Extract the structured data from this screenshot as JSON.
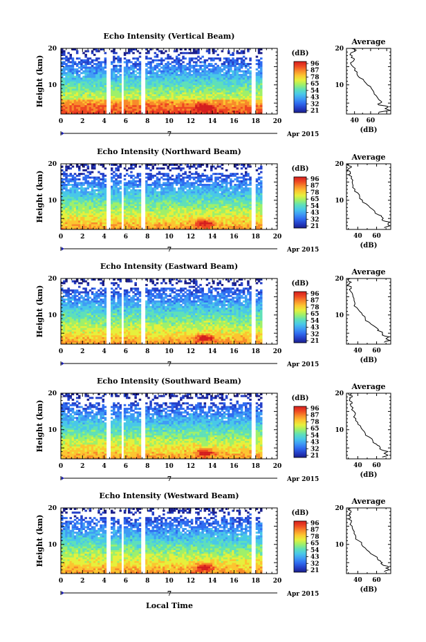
{
  "figure": {
    "xlabel": "Local Time",
    "date_left": "7",
    "date_right": "Apr 2015",
    "colorbar_unit": "(dB)",
    "profile_title": "Average",
    "profile_xlabel": "(dB)"
  },
  "colors": {
    "scale": [
      "#1b1f8c",
      "#2440c8",
      "#2f6cf0",
      "#3f9cf5",
      "#49c8e8",
      "#5fe0b8",
      "#9ef06a",
      "#e6f03c",
      "#fcc530",
      "#f88a2a",
      "#ee4722",
      "#d41e1e"
    ]
  },
  "chart_data": [
    {
      "type": "heatmap",
      "title": "Echo Intensity (Vertical Beam)",
      "ylabel": "Height (km)",
      "xlim": [
        0,
        20
      ],
      "ylim": [
        2,
        20
      ],
      "xticks": [
        0,
        2,
        4,
        6,
        8,
        10,
        12,
        14,
        16,
        18,
        20
      ],
      "yticks": [
        10,
        20
      ],
      "colorbar": {
        "unit": "(dB)",
        "ticks": [
          96,
          87,
          78,
          65,
          54,
          43,
          32,
          21
        ]
      },
      "data_gaps_hours": [
        [
          4.3,
          4.6
        ],
        [
          5.6,
          5.9
        ],
        [
          7.5,
          7.9
        ],
        [
          17.6,
          18.0
        ]
      ],
      "end_hour": 18.4,
      "profile": {
        "title": "Average",
        "xlabel": "(dB)",
        "xlim": [
          30,
          85
        ],
        "xticks": [
          40,
          60
        ],
        "ylim": [
          2,
          20
        ],
        "yticks": [
          10,
          20
        ],
        "heights_km": [
          2.5,
          3.0,
          3.5,
          4.0,
          4.5,
          5.0,
          5.5,
          6.0,
          7.0,
          8.0,
          9.0,
          10.0,
          11.0,
          12.0,
          13.0,
          14.0,
          15.0,
          16.0,
          17.0,
          17.5,
          18.0,
          18.5,
          19.0,
          19.5,
          20.0
        ],
        "values_db": [
          70,
          84,
          78,
          82,
          70,
          72,
          73,
          70,
          67,
          64,
          61,
          56,
          52,
          46,
          43,
          40,
          38,
          35,
          40,
          36,
          37,
          35,
          38,
          42,
          36
        ]
      }
    },
    {
      "type": "heatmap",
      "title": "Echo Intensity (Northward Beam)",
      "ylabel": "Height (km)",
      "xlim": [
        0,
        20
      ],
      "ylim": [
        2,
        20
      ],
      "xticks": [
        0,
        2,
        4,
        6,
        8,
        10,
        12,
        14,
        16,
        18,
        20
      ],
      "yticks": [
        10,
        20
      ],
      "colorbar": {
        "unit": "(dB)",
        "ticks": [
          96,
          87,
          78,
          65,
          54,
          43,
          32,
          21
        ]
      },
      "data_gaps_hours": [
        [
          4.3,
          4.6
        ],
        [
          5.6,
          5.9
        ],
        [
          7.5,
          7.9
        ],
        [
          17.6,
          18.0
        ]
      ],
      "end_hour": 18.4,
      "profile": {
        "title": "Average",
        "xlabel": "(dB)",
        "xlim": [
          28,
          75
        ],
        "xticks": [
          40,
          60
        ],
        "ylim": [
          2,
          20
        ],
        "yticks": [
          10,
          20
        ],
        "heights_km": [
          2.5,
          3.0,
          3.5,
          4.0,
          4.5,
          5.0,
          5.5,
          6.0,
          7.0,
          8.0,
          9.0,
          10.0,
          11.0,
          12.0,
          13.0,
          14.0,
          15.0,
          16.0,
          17.0,
          17.5,
          18.0,
          18.5,
          19.0,
          19.5,
          20.0
        ],
        "values_db": [
          68,
          74,
          72,
          74,
          66,
          67,
          65,
          62,
          58,
          53,
          49,
          45,
          42,
          40,
          37,
          35,
          34,
          33,
          30,
          32,
          31,
          30,
          33,
          30,
          31
        ]
      }
    },
    {
      "type": "heatmap",
      "title": "Echo Intensity (Eastward Beam)",
      "ylabel": "Height (km)",
      "xlim": [
        0,
        20
      ],
      "ylim": [
        2,
        20
      ],
      "xticks": [
        0,
        2,
        4,
        6,
        8,
        10,
        12,
        14,
        16,
        18,
        20
      ],
      "yticks": [
        10,
        20
      ],
      "colorbar": {
        "unit": "(dB)",
        "ticks": [
          96,
          87,
          78,
          65,
          54,
          43,
          32,
          21
        ]
      },
      "data_gaps_hours": [
        [
          4.3,
          4.6
        ],
        [
          5.6,
          5.9
        ],
        [
          7.5,
          7.9
        ],
        [
          17.6,
          18.0
        ]
      ],
      "end_hour": 18.4,
      "profile": {
        "title": "Average",
        "xlabel": "(dB)",
        "xlim": [
          28,
          75
        ],
        "xticks": [
          40,
          60
        ],
        "ylim": [
          2,
          20
        ],
        "yticks": [
          10,
          20
        ],
        "heights_km": [
          2.5,
          3.0,
          3.5,
          4.0,
          4.5,
          5.0,
          5.5,
          6.0,
          7.0,
          8.0,
          9.0,
          10.0,
          11.0,
          12.0,
          13.0,
          14.0,
          15.0,
          16.0,
          17.0,
          17.5,
          18.0,
          18.5,
          19.0,
          19.5,
          20.0
        ],
        "values_db": [
          68,
          74,
          70,
          73,
          66,
          66,
          64,
          62,
          57,
          52,
          48,
          45,
          42,
          39,
          37,
          36,
          35,
          34,
          31,
          33,
          30,
          31,
          33,
          30,
          32
        ]
      }
    },
    {
      "type": "heatmap",
      "title": "Echo Intensity (Southward Beam)",
      "ylabel": "Height (km)",
      "xlim": [
        0,
        20
      ],
      "ylim": [
        2,
        20
      ],
      "xticks": [
        0,
        2,
        4,
        6,
        8,
        10,
        12,
        14,
        16,
        18,
        20
      ],
      "yticks": [
        10,
        20
      ],
      "colorbar": {
        "unit": "(dB)",
        "ticks": [
          96,
          87,
          78,
          65,
          54,
          43,
          32,
          21
        ]
      },
      "data_gaps_hours": [
        [
          4.3,
          4.6
        ],
        [
          5.6,
          5.9
        ],
        [
          7.5,
          7.9
        ],
        [
          17.6,
          18.0
        ]
      ],
      "end_hour": 18.4,
      "profile": {
        "title": "Average",
        "xlabel": "(dB)",
        "xlim": [
          28,
          75
        ],
        "xticks": [
          40,
          60
        ],
        "ylim": [
          2,
          20
        ],
        "yticks": [
          10,
          20
        ],
        "heights_km": [
          2.5,
          3.0,
          3.5,
          4.0,
          4.5,
          5.0,
          5.5,
          6.0,
          7.0,
          8.0,
          9.0,
          10.0,
          11.0,
          12.0,
          13.0,
          14.0,
          15.0,
          16.0,
          17.0,
          17.5,
          18.0,
          18.5,
          19.0,
          19.5,
          20.0
        ],
        "values_db": [
          66,
          72,
          68,
          72,
          65,
          64,
          63,
          60,
          56,
          52,
          48,
          45,
          43,
          40,
          38,
          37,
          36,
          35,
          32,
          34,
          31,
          32,
          34,
          31,
          33
        ]
      }
    },
    {
      "type": "heatmap",
      "title": "Echo Intensity (Westward Beam)",
      "ylabel": "Height (km)",
      "xlim": [
        0,
        20
      ],
      "ylim": [
        2,
        20
      ],
      "xticks": [
        0,
        2,
        4,
        6,
        8,
        10,
        12,
        14,
        16,
        18,
        20
      ],
      "yticks": [
        10,
        20
      ],
      "colorbar": {
        "unit": "(dB)",
        "ticks": [
          96,
          87,
          78,
          65,
          54,
          43,
          32,
          21
        ]
      },
      "data_gaps_hours": [
        [
          4.3,
          4.6
        ],
        [
          5.6,
          5.9
        ],
        [
          7.5,
          7.9
        ],
        [
          17.6,
          18.0
        ]
      ],
      "end_hour": 18.4,
      "profile": {
        "title": "Average",
        "xlabel": "(dB)",
        "xlim": [
          28,
          75
        ],
        "xticks": [
          40,
          60
        ],
        "ylim": [
          2,
          20
        ],
        "yticks": [
          10,
          20
        ],
        "heights_km": [
          2.5,
          3.0,
          3.5,
          4.0,
          4.5,
          5.0,
          5.5,
          6.0,
          7.0,
          8.0,
          9.0,
          10.0,
          11.0,
          12.0,
          13.0,
          14.0,
          15.0,
          16.0,
          17.0,
          17.5,
          18.0,
          18.5,
          19.0,
          19.5,
          20.0
        ],
        "values_db": [
          68,
          73,
          70,
          72,
          66,
          66,
          64,
          61,
          57,
          52,
          48,
          44,
          41,
          38,
          36,
          35,
          34,
          33,
          30,
          32,
          30,
          31,
          33,
          30,
          31
        ]
      }
    }
  ]
}
